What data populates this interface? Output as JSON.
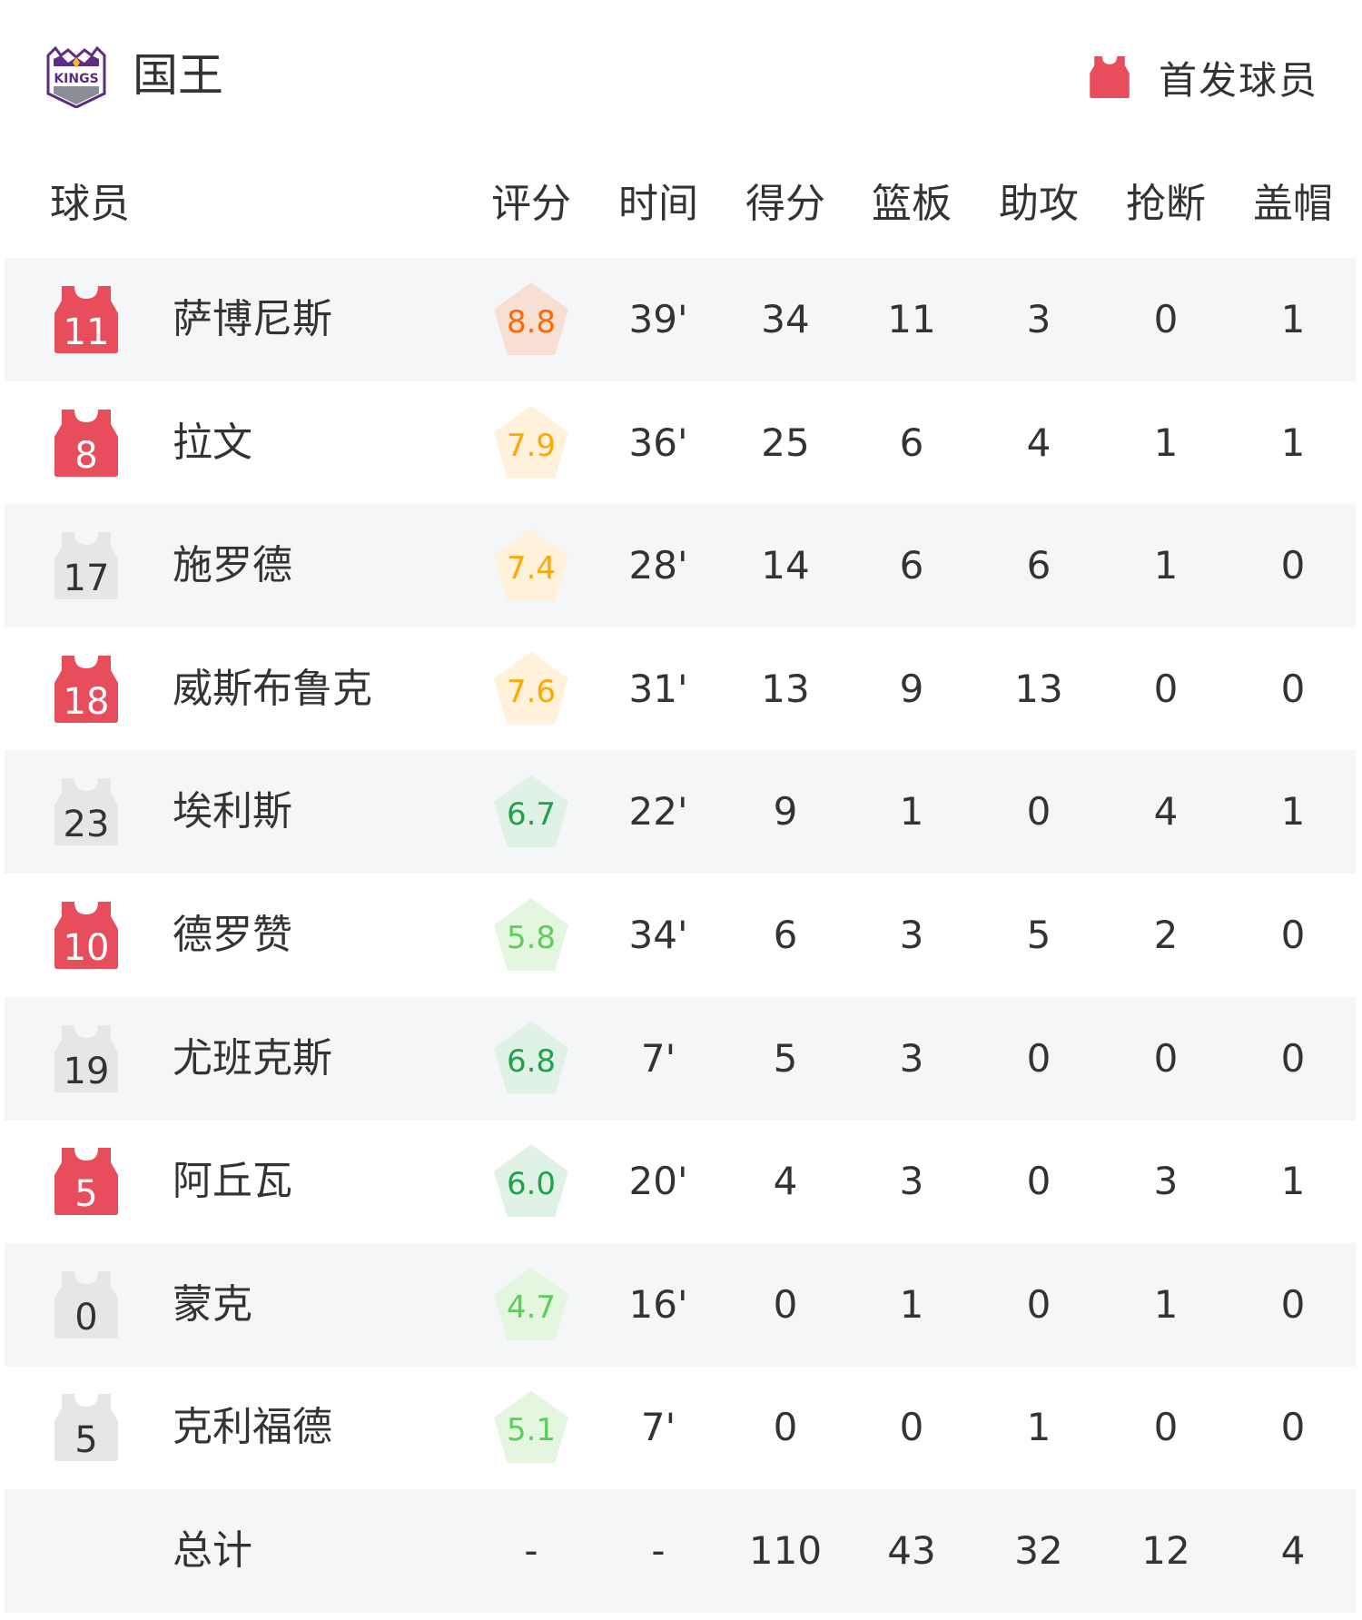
{
  "team": {
    "name": "国王",
    "logo_text": "KINGS"
  },
  "legend": {
    "label": "首发球员",
    "starter_color": "#e84d5b",
    "bench_color": "#e6e6e6"
  },
  "columns": {
    "player": "球员",
    "rating": "评分",
    "time": "时间",
    "points": "得分",
    "rebounds": "篮板",
    "assists": "助攻",
    "steals": "抢断",
    "blocks": "盖帽"
  },
  "rating_colors": {
    "top": {
      "text": "#ff6a00",
      "bg": "#f8dfd3"
    },
    "high": {
      "text": "#ffa800",
      "bg": "#fff1da"
    },
    "mid": {
      "text": "#1fa34a",
      "bg": "#e0f1e5"
    },
    "low": {
      "text": "#5cce5c",
      "bg": "#e4f6e0"
    }
  },
  "players": [
    {
      "number": "11",
      "name": "萨博尼斯",
      "starter": true,
      "rating": "8.8",
      "tier": "top",
      "time": "39'",
      "points": "34",
      "rebounds": "11",
      "assists": "3",
      "steals": "0",
      "blocks": "1"
    },
    {
      "number": "8",
      "name": "拉文",
      "starter": true,
      "rating": "7.9",
      "tier": "high",
      "time": "36'",
      "points": "25",
      "rebounds": "6",
      "assists": "4",
      "steals": "1",
      "blocks": "1"
    },
    {
      "number": "17",
      "name": "施罗德",
      "starter": false,
      "rating": "7.4",
      "tier": "high",
      "time": "28'",
      "points": "14",
      "rebounds": "6",
      "assists": "6",
      "steals": "1",
      "blocks": "0"
    },
    {
      "number": "18",
      "name": "威斯布鲁克",
      "starter": true,
      "rating": "7.6",
      "tier": "high",
      "time": "31'",
      "points": "13",
      "rebounds": "9",
      "assists": "13",
      "steals": "0",
      "blocks": "0"
    },
    {
      "number": "23",
      "name": "埃利斯",
      "starter": false,
      "rating": "6.7",
      "tier": "mid",
      "time": "22'",
      "points": "9",
      "rebounds": "1",
      "assists": "0",
      "steals": "4",
      "blocks": "1"
    },
    {
      "number": "10",
      "name": "德罗赞",
      "starter": true,
      "rating": "5.8",
      "tier": "low",
      "time": "34'",
      "points": "6",
      "rebounds": "3",
      "assists": "5",
      "steals": "2",
      "blocks": "0"
    },
    {
      "number": "19",
      "name": "尤班克斯",
      "starter": false,
      "rating": "6.8",
      "tier": "mid",
      "time": "7'",
      "points": "5",
      "rebounds": "3",
      "assists": "0",
      "steals": "0",
      "blocks": "0"
    },
    {
      "number": "5",
      "name": "阿丘瓦",
      "starter": true,
      "rating": "6.0",
      "tier": "mid",
      "time": "20'",
      "points": "4",
      "rebounds": "3",
      "assists": "0",
      "steals": "3",
      "blocks": "1"
    },
    {
      "number": "0",
      "name": "蒙克",
      "starter": false,
      "rating": "4.7",
      "tier": "low",
      "time": "16'",
      "points": "0",
      "rebounds": "1",
      "assists": "0",
      "steals": "1",
      "blocks": "0"
    },
    {
      "number": "5",
      "name": "克利福德",
      "starter": false,
      "rating": "5.1",
      "tier": "low",
      "time": "7'",
      "points": "0",
      "rebounds": "0",
      "assists": "1",
      "steals": "0",
      "blocks": "0"
    }
  ],
  "totals": {
    "label": "总计",
    "rating": "-",
    "time": "-",
    "points": "110",
    "rebounds": "43",
    "assists": "32",
    "steals": "12",
    "blocks": "4"
  }
}
